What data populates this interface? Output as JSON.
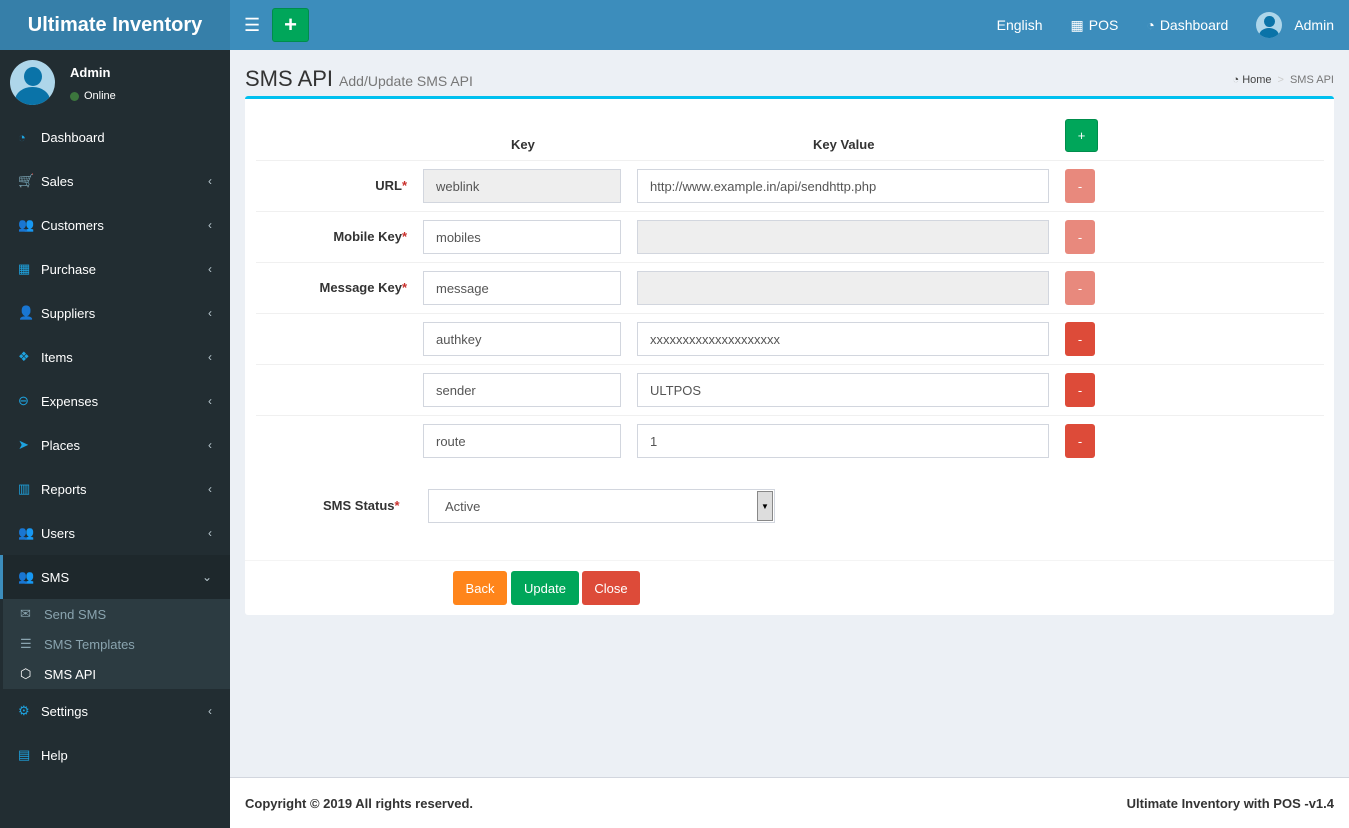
{
  "app": {
    "title": "Ultimate Inventory"
  },
  "topbar": {
    "add_label": "+",
    "language": "English",
    "pos": "POS",
    "dashboard": "Dashboard",
    "user": "Admin"
  },
  "user_panel": {
    "name": "Admin",
    "status": "Online",
    "status_color": "#3c763d"
  },
  "sidebar": {
    "items": [
      {
        "label": "Dashboard",
        "icon": "dashboard-icon",
        "glyph": "◔"
      },
      {
        "label": "Sales",
        "icon": "cart-icon",
        "glyph": "🛒",
        "chev": "‹"
      },
      {
        "label": "Customers",
        "icon": "users-icon",
        "glyph": "👥",
        "chev": "‹"
      },
      {
        "label": "Purchase",
        "icon": "grid-icon",
        "glyph": "▦",
        "chev": "‹"
      },
      {
        "label": "Suppliers",
        "icon": "user-plus-icon",
        "glyph": "👤",
        "chev": "‹"
      },
      {
        "label": "Items",
        "icon": "cubes-icon",
        "glyph": "❖",
        "chev": "‹"
      },
      {
        "label": "Expenses",
        "icon": "minus-circle-icon",
        "glyph": "⊖",
        "chev": "‹"
      },
      {
        "label": "Places",
        "icon": "paper-plane-icon",
        "glyph": "➤",
        "chev": "‹"
      },
      {
        "label": "Reports",
        "icon": "bar-chart-icon",
        "glyph": "▥",
        "chev": "‹"
      },
      {
        "label": "Users",
        "icon": "users-icon",
        "glyph": "👥",
        "chev": "‹"
      },
      {
        "label": "SMS",
        "icon": "users-icon",
        "glyph": "👥",
        "chev": "⌄"
      },
      {
        "label": "Settings",
        "icon": "cogs-icon",
        "glyph": "⚙",
        "chev": "‹"
      },
      {
        "label": "Help",
        "icon": "book-icon",
        "glyph": "▤"
      }
    ],
    "sms_sub": [
      {
        "label": "Send SMS",
        "glyph": "✉"
      },
      {
        "label": "SMS Templates",
        "glyph": "☰"
      },
      {
        "label": "SMS API",
        "glyph": "⬡"
      }
    ]
  },
  "page": {
    "title": "SMS API",
    "subtitle": "Add/Update SMS API"
  },
  "breadcrumb": {
    "home": "Home",
    "sep": ">",
    "current": "SMS API"
  },
  "form": {
    "col_key": "Key",
    "col_value": "Key Value",
    "add_row": "+",
    "remove": "-",
    "required": "*",
    "rows": [
      {
        "label": "URL",
        "key": "weblink",
        "value": "http://www.example.in/api/sendhttp.php"
      },
      {
        "label": "Mobile Key",
        "key": "mobiles",
        "value": ""
      },
      {
        "label": "Message Key",
        "key": "message",
        "value": ""
      },
      {
        "label": "",
        "key": "authkey",
        "value": "xxxxxxxxxxxxxxxxxxxx"
      },
      {
        "label": "",
        "key": "sender",
        "value": "ULTPOS"
      },
      {
        "label": "",
        "key": "route",
        "value": "1"
      }
    ],
    "status_label": "SMS Status",
    "status_value": "Active",
    "back": "Back",
    "update": "Update",
    "close": "Close"
  },
  "colors": {
    "primary": "#3c8dbc",
    "success": "#00a65a",
    "danger": "#dd4b39",
    "warning": "#ff851b",
    "info": "#00c0ef"
  },
  "footer": {
    "copyright": "Copyright © 2019 All rights reserved.",
    "version": "Ultimate Inventory with POS -v1.4"
  }
}
